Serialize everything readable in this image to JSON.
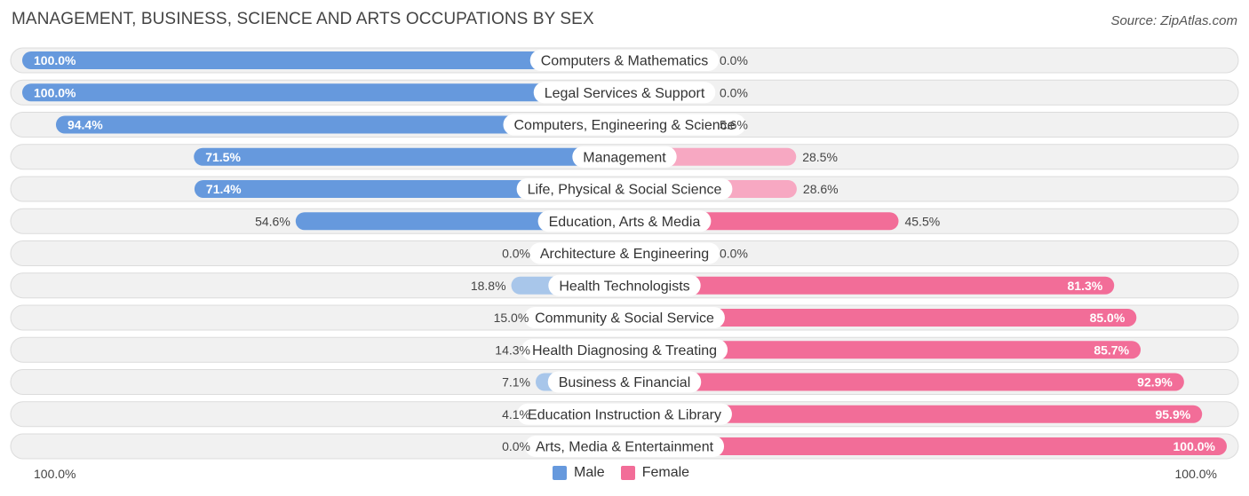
{
  "header": {
    "title": "MANAGEMENT, BUSINESS, SCIENCE AND ARTS OCCUPATIONS BY SEX",
    "source": "Source: ZipAtlas.com"
  },
  "axis": {
    "left_label": "100.0%",
    "right_label": "100.0%"
  },
  "legend": {
    "male_label": "Male",
    "female_label": "Female"
  },
  "colors": {
    "male_strong": "#6699dd",
    "male_light": "#a8c6ea",
    "female_strong": "#f26d98",
    "female_light": "#f7a8c2"
  },
  "chart_data": {
    "type": "bar",
    "title": "MANAGEMENT, BUSINESS, SCIENCE AND ARTS OCCUPATIONS BY SEX",
    "xlim": [
      -100,
      100
    ],
    "categories": [
      "Computers & Mathematics",
      "Legal Services & Support",
      "Computers, Engineering & Science",
      "Management",
      "Life, Physical & Social Science",
      "Education, Arts & Media",
      "Architecture & Engineering",
      "Health Technologists",
      "Community & Social Service",
      "Health Diagnosing & Treating",
      "Business & Financial",
      "Education Instruction & Library",
      "Arts, Media & Entertainment"
    ],
    "series": [
      {
        "name": "Male",
        "values": [
          100.0,
          100.0,
          94.4,
          71.5,
          71.4,
          54.6,
          0.0,
          18.8,
          15.0,
          14.3,
          7.1,
          4.1,
          0.0
        ],
        "labels": [
          "100.0%",
          "100.0%",
          "94.4%",
          "71.5%",
          "71.4%",
          "54.6%",
          "0.0%",
          "18.8%",
          "15.0%",
          "14.3%",
          "7.1%",
          "4.1%",
          "0.0%"
        ]
      },
      {
        "name": "Female",
        "values": [
          0.0,
          0.0,
          5.6,
          28.5,
          28.6,
          45.5,
          0.0,
          81.3,
          85.0,
          85.7,
          92.9,
          95.9,
          100.0
        ],
        "labels": [
          "0.0%",
          "0.0%",
          "5.6%",
          "28.5%",
          "28.6%",
          "45.5%",
          "0.0%",
          "81.3%",
          "85.0%",
          "85.7%",
          "92.9%",
          "95.9%",
          "100.0%"
        ]
      }
    ]
  }
}
